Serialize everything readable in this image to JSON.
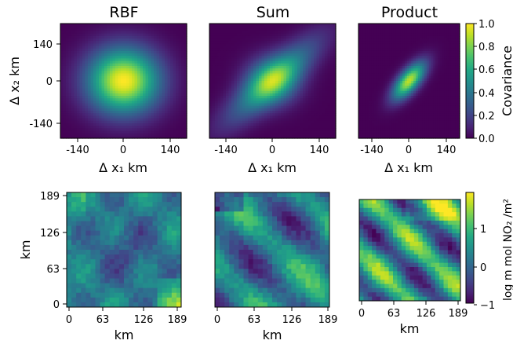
{
  "chart_data": [
    {
      "type": "heatmap",
      "panel": "covariance",
      "title": "RBF",
      "xlabel": "Δ x₁ km",
      "ylabel": "Δ x₂ km",
      "xticks": [
        "-140",
        "0",
        "140"
      ],
      "yticks": [
        "140",
        "0",
        "-140"
      ],
      "xlim": [
        -190,
        190
      ],
      "ylim": [
        -190,
        190
      ],
      "kernel": "rbf",
      "length_scale_km": 75,
      "peak_covariance": 1.0,
      "colormap": "viridis"
    },
    {
      "type": "heatmap",
      "panel": "covariance",
      "title": "Sum",
      "xlabel": "Δ x₁ km",
      "xticks": [
        "-140",
        "0",
        "140"
      ],
      "xlim": [
        -190,
        190
      ],
      "ylim": [
        -190,
        190
      ],
      "kernel": "sum",
      "orientation": "diagonal",
      "peak_covariance": 0.95,
      "colormap": "viridis"
    },
    {
      "type": "heatmap",
      "panel": "covariance",
      "title": "Product",
      "xlabel": "Δ x₁ km",
      "xticks": [
        "-140",
        "0",
        "140"
      ],
      "xlim": [
        -190,
        190
      ],
      "ylim": [
        -190,
        190
      ],
      "kernel": "product",
      "orientation": "diagonal",
      "peak_covariance": 0.9,
      "colorbar": {
        "label": "Covariance",
        "range": [
          0.0,
          1.0
        ],
        "ticks": [
          "0.0",
          "0.2",
          "0.4",
          "0.6",
          "0.8",
          "1.0"
        ]
      },
      "colormap": "viridis"
    },
    {
      "type": "heatmap",
      "panel": "sample",
      "kernel": "rbf",
      "xlabel": "km",
      "ylabel": "km",
      "xticks": [
        "0",
        "63",
        "126",
        "189"
      ],
      "yticks": [
        "189",
        "126",
        "63",
        "0"
      ],
      "xlim": [
        0,
        189
      ],
      "ylim": [
        0,
        189
      ],
      "grid_cells": 24,
      "colormap": "viridis"
    },
    {
      "type": "heatmap",
      "panel": "sample",
      "kernel": "sum",
      "xlabel": "km",
      "xticks": [
        "0",
        "63",
        "126",
        "189"
      ],
      "xlim": [
        0,
        189
      ],
      "ylim": [
        0,
        189
      ],
      "grid_cells": 24,
      "colormap": "viridis"
    },
    {
      "type": "heatmap",
      "panel": "sample",
      "kernel": "product",
      "xlabel": "km",
      "xticks": [
        "0",
        "63",
        "126",
        "189"
      ],
      "xlim": [
        0,
        189
      ],
      "ylim": [
        0,
        189
      ],
      "grid_cells": 24,
      "colorbar": {
        "label": "log m mol NO₂ /m²",
        "range": [
          -1,
          1.9
        ],
        "ticks": [
          "1",
          "0",
          "−1"
        ]
      },
      "colormap": "viridis"
    }
  ]
}
